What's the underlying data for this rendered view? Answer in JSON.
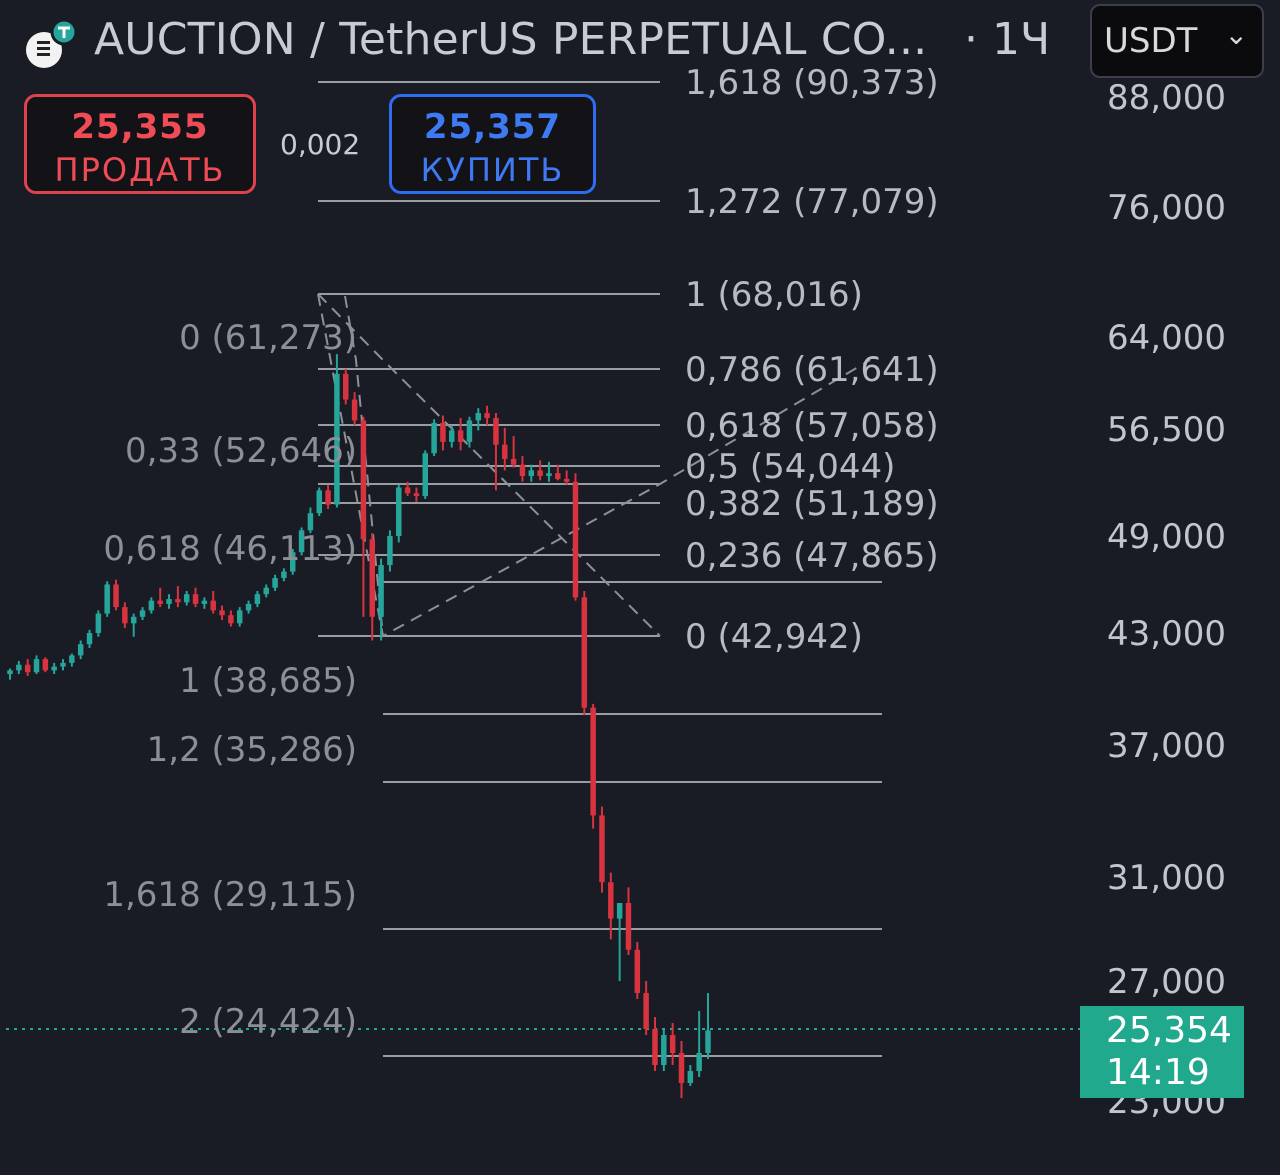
{
  "header": {
    "title": "AUCTION / TetherUS PERPETUAL CO...",
    "interval": "· 1Ч",
    "currency": "USDT",
    "logo_icon": "auction-coin-icon"
  },
  "trade": {
    "sell_price": "25,355",
    "sell_label": "ПРОДАТЬ",
    "spread": "0,002",
    "buy_price": "25,357",
    "buy_label": "КУПИТЬ"
  },
  "price_axis": {
    "ticks": [
      "88,000",
      "76,000",
      "64,000",
      "56,500",
      "49,000",
      "43,000",
      "37,000",
      "31,000",
      "27,000",
      "23,000"
    ]
  },
  "current_price": {
    "price": "25,354",
    "countdown": "14:19"
  },
  "fib_right": [
    "1,618 (90,373)",
    "1,272 (77,079)",
    "1 (68,016)",
    "0,786 (61,641)",
    "0,618 (57,058)",
    "0,5 (54,044)",
    "0,382 (51,189)",
    "0,236 (47,865)",
    "0 (42,942)"
  ],
  "fib_left": [
    "0 (61,273)",
    "0,33 (52,646)",
    "0,618 (46,113)",
    "1 (38,685)",
    "1,2 (35,286)",
    "1,618 (29,115)",
    "2 (24,424)"
  ],
  "colors": {
    "up": "#26a69a",
    "down": "#d8343f",
    "background": "#191b25",
    "badge": "#21a98e"
  },
  "chart_data": {
    "type": "candlestick",
    "symbol": "AUCTION / TetherUS PERPETUAL",
    "timeframe": "1H",
    "candles_ohlc": [
      [
        40.8,
        41.1,
        40.5,
        41.0
      ],
      [
        41.0,
        41.5,
        40.8,
        41.3
      ],
      [
        41.3,
        41.6,
        40.7,
        40.9
      ],
      [
        40.9,
        41.8,
        40.8,
        41.6
      ],
      [
        41.6,
        41.7,
        40.9,
        41.0
      ],
      [
        41.0,
        41.4,
        40.8,
        41.2
      ],
      [
        41.2,
        41.6,
        41.0,
        41.4
      ],
      [
        41.4,
        41.9,
        41.2,
        41.8
      ],
      [
        41.8,
        42.6,
        41.6,
        42.4
      ],
      [
        42.4,
        43.2,
        42.2,
        43.0
      ],
      [
        43.0,
        44.4,
        42.8,
        44.2
      ],
      [
        44.2,
        46.2,
        44.0,
        46.0
      ],
      [
        46.0,
        46.3,
        44.4,
        44.6
      ],
      [
        44.6,
        44.9,
        43.3,
        43.6
      ],
      [
        43.6,
        44.2,
        42.8,
        44.0
      ],
      [
        44.0,
        44.6,
        43.8,
        44.4
      ],
      [
        44.4,
        45.2,
        44.2,
        45.0
      ],
      [
        45.0,
        45.8,
        44.6,
        44.8
      ],
      [
        44.8,
        45.4,
        44.5,
        45.1
      ],
      [
        45.1,
        45.9,
        44.6,
        44.9
      ],
      [
        44.9,
        45.6,
        44.7,
        45.4
      ],
      [
        45.4,
        45.8,
        44.6,
        44.8
      ],
      [
        44.8,
        45.2,
        44.5,
        45.0
      ],
      [
        45.0,
        45.6,
        44.2,
        44.4
      ],
      [
        44.4,
        44.7,
        43.8,
        44.1
      ],
      [
        44.1,
        44.4,
        43.4,
        43.6
      ],
      [
        43.6,
        44.6,
        43.4,
        44.4
      ],
      [
        44.4,
        45.0,
        44.2,
        44.8
      ],
      [
        44.8,
        45.6,
        44.6,
        45.4
      ],
      [
        45.4,
        46.0,
        45.2,
        45.8
      ],
      [
        45.8,
        46.6,
        45.6,
        46.4
      ],
      [
        46.4,
        47.0,
        46.2,
        46.8
      ],
      [
        46.8,
        48.2,
        46.6,
        48.0
      ],
      [
        48.0,
        49.6,
        47.8,
        49.4
      ],
      [
        49.4,
        51.0,
        49.2,
        50.6
      ],
      [
        50.6,
        52.4,
        50.4,
        52.2
      ],
      [
        52.2,
        52.6,
        50.9,
        51.2
      ],
      [
        51.2,
        62.6,
        51.0,
        61.0
      ],
      [
        61.0,
        61.4,
        58.5,
        58.9
      ],
      [
        58.9,
        59.5,
        56.8,
        57.2
      ],
      [
        57.2,
        57.5,
        44.0,
        48.8
      ],
      [
        48.8,
        49.2,
        42.6,
        44.0
      ],
      [
        44.0,
        47.6,
        42.6,
        47.2
      ],
      [
        47.2,
        49.4,
        46.8,
        49.0
      ],
      [
        49.0,
        52.6,
        48.6,
        52.4
      ],
      [
        52.4,
        52.8,
        51.8,
        52.0
      ],
      [
        52.0,
        52.4,
        51.4,
        51.8
      ],
      [
        51.8,
        55.0,
        51.6,
        54.8
      ],
      [
        54.8,
        57.3,
        54.6,
        57.0
      ],
      [
        57.0,
        57.6,
        55.0,
        55.6
      ],
      [
        55.6,
        56.8,
        55.2,
        56.4
      ],
      [
        56.4,
        57.4,
        55.0,
        55.6
      ],
      [
        55.6,
        57.5,
        55.2,
        57.2
      ],
      [
        57.2,
        58.2,
        56.4,
        57.8
      ],
      [
        57.8,
        58.4,
        56.8,
        57.4
      ],
      [
        57.4,
        57.8,
        52.2,
        55.4
      ],
      [
        55.4,
        56.6,
        53.6,
        54.4
      ],
      [
        54.4,
        56.0,
        53.8,
        54.0
      ],
      [
        54.0,
        54.6,
        52.8,
        53.2
      ],
      [
        53.2,
        54.0,
        52.8,
        53.6
      ],
      [
        53.6,
        54.3,
        52.9,
        53.2
      ],
      [
        53.2,
        54.2,
        52.8,
        53.4
      ],
      [
        53.4,
        54.0,
        52.9,
        53.0
      ],
      [
        53.0,
        53.6,
        52.6,
        52.8
      ],
      [
        52.8,
        53.4,
        45.0,
        45.2
      ],
      [
        45.2,
        45.6,
        38.6,
        39.0
      ],
      [
        39.0,
        39.2,
        33.2,
        33.8
      ],
      [
        33.8,
        34.2,
        30.4,
        30.8
      ],
      [
        30.8,
        31.2,
        28.6,
        29.4
      ],
      [
        29.4,
        29.8,
        27.0,
        30.0
      ],
      [
        30.0,
        30.6,
        28.0,
        28.2
      ],
      [
        28.2,
        28.5,
        26.4,
        26.6
      ],
      [
        26.6,
        27.0,
        25.2,
        25.4
      ],
      [
        25.4,
        25.8,
        24.0,
        24.2
      ],
      [
        24.2,
        25.4,
        24.0,
        25.2
      ],
      [
        25.2,
        25.6,
        24.2,
        24.6
      ],
      [
        24.6,
        25.0,
        23.1,
        23.6
      ],
      [
        23.6,
        24.2,
        23.5,
        24.0
      ],
      [
        24.0,
        26.0,
        23.8,
        24.6
      ],
      [
        24.6,
        26.6,
        24.4,
        25.354
      ]
    ],
    "current_price": 25.354,
    "y_axis_ticks": [
      "88,000",
      "76,000",
      "64,000",
      "56,500",
      "49,000",
      "43,000",
      "37,000",
      "31,000",
      "27,000",
      "23,000"
    ],
    "fib_retracement_right": [
      {
        "level": "1,618",
        "price": "90,373"
      },
      {
        "level": "1,272",
        "price": "77,079"
      },
      {
        "level": "1",
        "price": "68,016"
      },
      {
        "level": "0,786",
        "price": "61,641"
      },
      {
        "level": "0,618",
        "price": "57,058"
      },
      {
        "level": "0,5",
        "price": "54,044"
      },
      {
        "level": "0,382",
        "price": "51,189"
      },
      {
        "level": "0,236",
        "price": "47,865"
      },
      {
        "level": "0",
        "price": "42,942"
      }
    ],
    "fib_extension_left": [
      {
        "level": "0",
        "price": "61,273"
      },
      {
        "level": "0,33",
        "price": "52,646"
      },
      {
        "level": "0,618",
        "price": "46,113"
      },
      {
        "level": "1",
        "price": "38,685"
      },
      {
        "level": "1,2",
        "price": "35,286"
      },
      {
        "level": "1,618",
        "price": "29,115"
      },
      {
        "level": "2",
        "price": "24,424"
      }
    ]
  }
}
